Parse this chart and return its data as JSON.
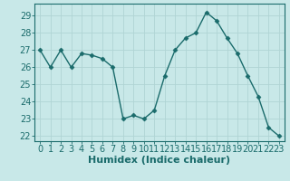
{
  "xlabel": "Humidex (Indice chaleur)",
  "x": [
    0,
    1,
    2,
    3,
    4,
    5,
    6,
    7,
    8,
    9,
    10,
    11,
    12,
    13,
    14,
    15,
    16,
    17,
    18,
    19,
    20,
    21,
    22,
    23
  ],
  "y": [
    27,
    26,
    27,
    26,
    26.8,
    26.7,
    26.5,
    26,
    23,
    23.2,
    23,
    23.5,
    25.5,
    27,
    27.7,
    28,
    29.2,
    28.7,
    27.7,
    26.8,
    25.5,
    24.3,
    22.5,
    22
  ],
  "ylim_min": 21.7,
  "ylim_max": 29.7,
  "xlim_min": -0.5,
  "xlim_max": 23.5,
  "yticks": [
    22,
    23,
    24,
    25,
    26,
    27,
    28,
    29
  ],
  "xticks": [
    0,
    1,
    2,
    3,
    4,
    5,
    6,
    7,
    8,
    9,
    10,
    11,
    12,
    13,
    14,
    15,
    16,
    17,
    18,
    19,
    20,
    21,
    22,
    23
  ],
  "line_color": "#1a6b6b",
  "marker": "D",
  "marker_size": 2.5,
  "line_width": 1.0,
  "bg_color": "#c8e8e8",
  "grid_color": "#b0d4d4",
  "spine_color": "#1a6b6b",
  "tick_label_color": "#1a6b6b",
  "xlabel_color": "#1a6b6b",
  "xlabel_fontsize": 8,
  "tick_fontsize": 7
}
